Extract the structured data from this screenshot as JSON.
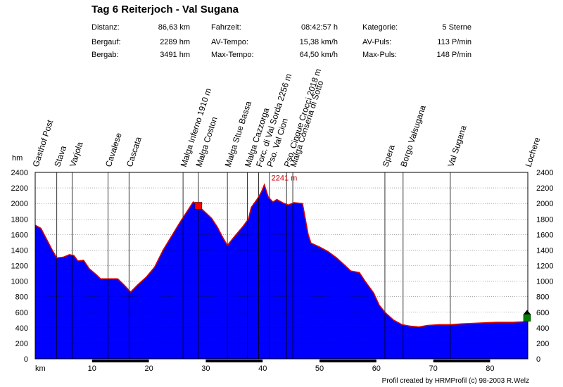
{
  "header": {
    "title": "Tag 6 Reiterjoch - Val Sugana",
    "stats": [
      {
        "label": "Distanz:",
        "value": "86,63 km"
      },
      {
        "label": "Fahrzeit:",
        "value": "08:42:57 h"
      },
      {
        "label": "Kategorie:",
        "value": "5 Sterne"
      },
      {
        "label": "Bergauf:",
        "value": "2289 hm"
      },
      {
        "label": "AV-Tempo:",
        "value": "15,38 km/h"
      },
      {
        "label": "AV-Puls:",
        "value": "113 P/min"
      },
      {
        "label": "Bergab:",
        "value": "3491 hm"
      },
      {
        "label": "Max-Tempo:",
        "value": "64,50 km/h"
      },
      {
        "label": "Max-Puls:",
        "value": "148 P/min"
      }
    ]
  },
  "chart_data": {
    "type": "area",
    "xlabel": "km",
    "ylabel": "hm",
    "xlim": [
      0,
      86.63
    ],
    "ylim": [
      0,
      2400
    ],
    "x_ticks": [
      10,
      20,
      30,
      40,
      50,
      60,
      70,
      80
    ],
    "y_ticks": [
      0,
      200,
      400,
      600,
      800,
      1000,
      1200,
      1400,
      1600,
      1800,
      2000,
      2200,
      2400
    ],
    "grid": "horizontal dotted",
    "colors": {
      "fill": "#0000ff",
      "outline": "#d40000",
      "max_marker": "#ff0000",
      "end_marker": "#008000",
      "annotation": "#cc0000"
    },
    "profile": [
      [
        0,
        1720
      ],
      [
        1,
        1680
      ],
      [
        2,
        1540
      ],
      [
        3,
        1400
      ],
      [
        3.8,
        1300
      ],
      [
        5,
        1310
      ],
      [
        6,
        1340
      ],
      [
        6.8,
        1330
      ],
      [
        7.5,
        1260
      ],
      [
        8.5,
        1270
      ],
      [
        9.5,
        1160
      ],
      [
        10.8,
        1080
      ],
      [
        11.5,
        1030
      ],
      [
        12.5,
        1030
      ],
      [
        14.5,
        1030
      ],
      [
        15.5,
        960
      ],
      [
        16.8,
        860
      ],
      [
        18,
        950
      ],
      [
        19.5,
        1050
      ],
      [
        21,
        1180
      ],
      [
        22.5,
        1400
      ],
      [
        24,
        1580
      ],
      [
        25.5,
        1760
      ],
      [
        27,
        1930
      ],
      [
        27.8,
        2020
      ],
      [
        28.5,
        1980
      ],
      [
        29.1,
        1940
      ],
      [
        30,
        1880
      ],
      [
        31,
        1810
      ],
      [
        32,
        1700
      ],
      [
        33,
        1560
      ],
      [
        33.8,
        1460
      ],
      [
        35,
        1570
      ],
      [
        36.5,
        1700
      ],
      [
        37.5,
        1800
      ],
      [
        38,
        1950
      ],
      [
        39,
        2050
      ],
      [
        39.8,
        2150
      ],
      [
        40.3,
        2241
      ],
      [
        41,
        2080
      ],
      [
        41.8,
        2020
      ],
      [
        42.5,
        2050
      ],
      [
        43.5,
        2010
      ],
      [
        44.5,
        1980
      ],
      [
        45.5,
        2010
      ],
      [
        47,
        2000
      ],
      [
        48,
        1600
      ],
      [
        48.5,
        1490
      ],
      [
        50,
        1440
      ],
      [
        51.5,
        1380
      ],
      [
        53,
        1300
      ],
      [
        54.5,
        1200
      ],
      [
        55.5,
        1130
      ],
      [
        57,
        1110
      ],
      [
        58,
        1000
      ],
      [
        59.5,
        850
      ],
      [
        60.5,
        690
      ],
      [
        61.5,
        600
      ],
      [
        63,
        500
      ],
      [
        64.5,
        440
      ],
      [
        66,
        420
      ],
      [
        67.5,
        410
      ],
      [
        69,
        430
      ],
      [
        71,
        440
      ],
      [
        73,
        440
      ],
      [
        75,
        450
      ],
      [
        78,
        460
      ],
      [
        81,
        470
      ],
      [
        84,
        470
      ],
      [
        86.63,
        480
      ]
    ],
    "waypoints": [
      {
        "name": "Gasthof Post",
        "km": 0
      },
      {
        "name": "Stava",
        "km": 3.8
      },
      {
        "name": "Varjola",
        "km": 6.5
      },
      {
        "name": "Cavalese",
        "km": 12.8
      },
      {
        "name": "Cascata",
        "km": 16.5
      },
      {
        "name": "Malga Inferno 1910 m",
        "km": 26.0
      },
      {
        "name": "Malga Coston",
        "km": 28.7
      },
      {
        "name": "Malga Stue Bassa",
        "km": 33.8
      },
      {
        "name": "Malga Cazzorga",
        "km": 37.3
      },
      {
        "name": "Forc. di Val Sorda 2256 m",
        "km": 39.3
      },
      {
        "name": "Pso. Val Cion",
        "km": 41.2
      },
      {
        "name": "Pso. Cinque Crocci 2018 m",
        "km": 44.2
      },
      {
        "name": "Malga Conseria di Sotto",
        "km": 45.3
      },
      {
        "name": "Spera",
        "km": 61.5
      },
      {
        "name": "Borgo Valsugana",
        "km": 64.7
      },
      {
        "name": "Val Sugana",
        "km": 73.0
      },
      {
        "name": "Lochere",
        "km": 86.63
      }
    ],
    "max_annotation": {
      "label": "2241 m",
      "km": 40.3,
      "hm": 2241
    },
    "markers": [
      {
        "shape": "square",
        "km": 28.7,
        "hm": 1970,
        "color": "#ff0000"
      },
      {
        "shape": "square",
        "km": 86.5,
        "hm": 530,
        "color": "#008000"
      }
    ]
  },
  "footer": {
    "credit": "Profil created by HRMProfil (c) 98-2003 R.Welz"
  }
}
